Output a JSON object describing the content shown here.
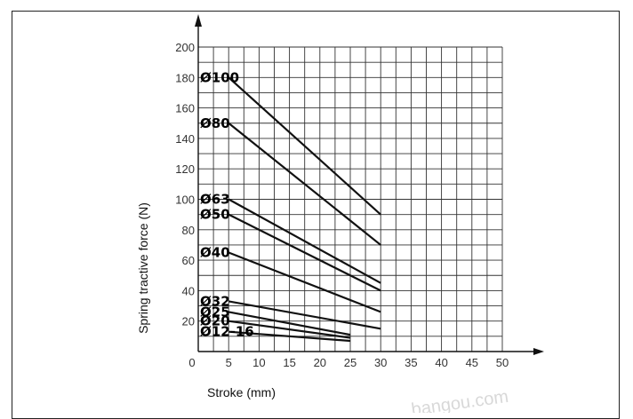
{
  "chart_data": {
    "type": "line",
    "xlabel": "Stroke (mm)",
    "ylabel": "Spring tractive force (N)",
    "xlim": [
      0,
      50
    ],
    "ylim": [
      0,
      200
    ],
    "xticks": [
      0,
      5,
      10,
      15,
      20,
      25,
      30,
      35,
      40,
      45,
      50
    ],
    "yticks": [
      20,
      40,
      60,
      80,
      100,
      120,
      140,
      160,
      180,
      200
    ],
    "grid": true,
    "series": [
      {
        "name": "Ø100",
        "x": [
          5,
          30
        ],
        "y": [
          180,
          90
        ]
      },
      {
        "name": "Ø80",
        "x": [
          5,
          30
        ],
        "y": [
          150,
          70
        ]
      },
      {
        "name": "Ø63",
        "x": [
          5,
          30
        ],
        "y": [
          100,
          45
        ]
      },
      {
        "name": "Ø50",
        "x": [
          5,
          30
        ],
        "y": [
          90,
          40
        ]
      },
      {
        "name": "Ø40",
        "x": [
          5,
          30
        ],
        "y": [
          65,
          26
        ]
      },
      {
        "name": "Ø32",
        "x": [
          5,
          30
        ],
        "y": [
          33,
          15
        ]
      },
      {
        "name": "Ø25",
        "x": [
          5,
          25
        ],
        "y": [
          26,
          11
        ]
      },
      {
        "name": "Ø20",
        "x": [
          5,
          25
        ],
        "y": [
          20,
          9
        ]
      },
      {
        "name": "Ø12-16",
        "x": [
          5,
          25
        ],
        "y": [
          13,
          7
        ]
      }
    ]
  },
  "watermark": "bangou.com"
}
